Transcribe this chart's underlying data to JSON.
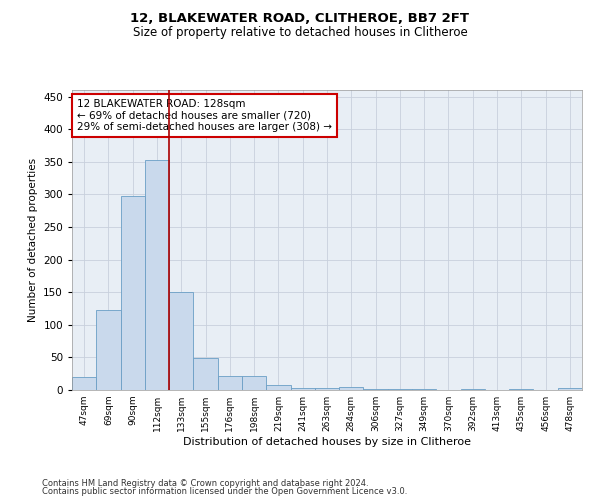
{
  "title1": "12, BLAKEWATER ROAD, CLITHEROE, BB7 2FT",
  "title2": "Size of property relative to detached houses in Clitheroe",
  "xlabel": "Distribution of detached houses by size in Clitheroe",
  "ylabel": "Number of detached properties",
  "footer1": "Contains HM Land Registry data © Crown copyright and database right 2024.",
  "footer2": "Contains public sector information licensed under the Open Government Licence v3.0.",
  "bar_labels": [
    "47sqm",
    "69sqm",
    "90sqm",
    "112sqm",
    "133sqm",
    "155sqm",
    "176sqm",
    "198sqm",
    "219sqm",
    "241sqm",
    "263sqm",
    "284sqm",
    "306sqm",
    "327sqm",
    "349sqm",
    "370sqm",
    "392sqm",
    "413sqm",
    "435sqm",
    "456sqm",
    "478sqm"
  ],
  "bar_values": [
    20,
    122,
    298,
    353,
    150,
    49,
    22,
    22,
    8,
    3,
    3,
    5,
    1,
    1,
    1,
    0,
    1,
    0,
    1,
    0,
    3
  ],
  "bar_color": "#c9d9ec",
  "bar_edgecolor": "#6a9ec5",
  "vline_color": "#aa0000",
  "annotation_text": "12 BLAKEWATER ROAD: 128sqm\n← 69% of detached houses are smaller (720)\n29% of semi-detached houses are larger (308) →",
  "annotation_box_color": "#ffffff",
  "annotation_box_edgecolor": "#cc0000",
  "ylim": [
    0,
    460
  ],
  "yticks": [
    0,
    50,
    100,
    150,
    200,
    250,
    300,
    350,
    400,
    450
  ],
  "grid_color": "#c8d0dc",
  "bg_color": "#e8eef5"
}
